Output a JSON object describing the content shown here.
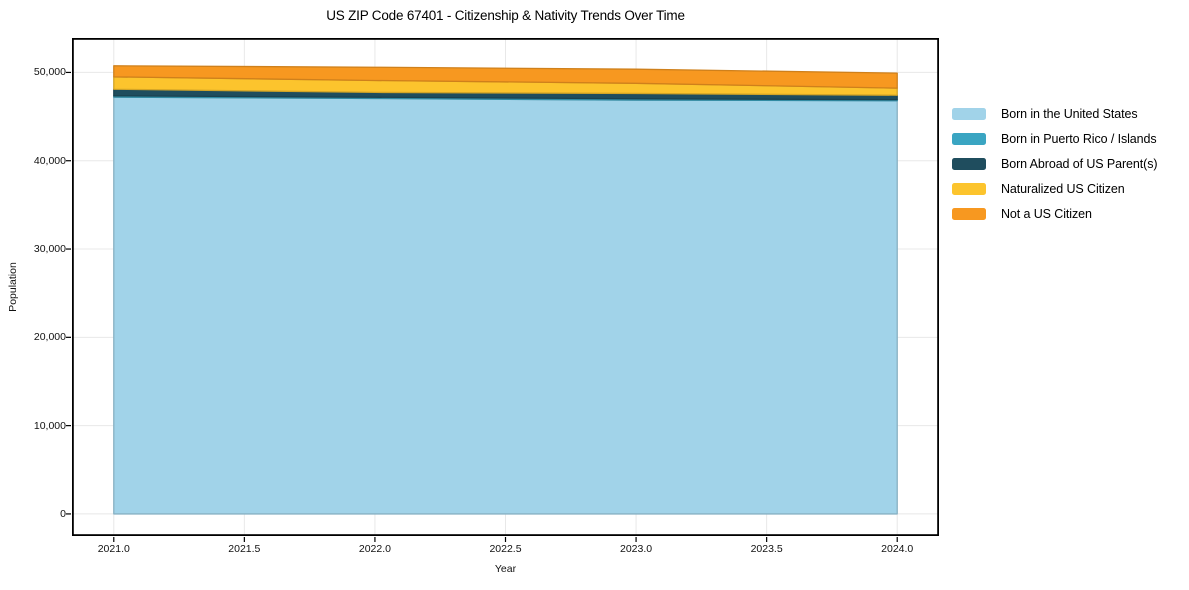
{
  "chart_data": {
    "type": "area",
    "stacked": true,
    "title": "US ZIP Code 67401 - Citizenship & Nativity Trends Over Time",
    "xlabel": "Year",
    "ylabel": "Population",
    "x": [
      2021,
      2022,
      2023,
      2024
    ],
    "series": [
      {
        "name": "Born in the United States",
        "color": "#a1d3e9",
        "values": [
          47200,
          47050,
          46870,
          46800
        ]
      },
      {
        "name": "Born in Puerto Rico / Islands",
        "color": "#3aa5c2",
        "values": [
          150,
          140,
          150,
          120
        ]
      },
      {
        "name": "Born Abroad of US Parent(s)",
        "color": "#1f4d5e",
        "values": [
          750,
          550,
          600,
          500
        ]
      },
      {
        "name": "Naturalized US Citizen",
        "color": "#fcc42d",
        "values": [
          1400,
          1350,
          1150,
          800
        ]
      },
      {
        "name": "Not a US Citizen",
        "color": "#f79820",
        "values": [
          1250,
          1500,
          1600,
          1700
        ]
      }
    ],
    "x_ticks": [
      {
        "value": 2021.0,
        "label": "2021.0"
      },
      {
        "value": 2021.5,
        "label": "2021.5"
      },
      {
        "value": 2022.0,
        "label": "2022.0"
      },
      {
        "value": 2022.5,
        "label": "2022.5"
      },
      {
        "value": 2023.0,
        "label": "2023.0"
      },
      {
        "value": 2023.5,
        "label": "2023.5"
      },
      {
        "value": 2024.0,
        "label": "2024.0"
      }
    ],
    "y_ticks": [
      {
        "value": 0,
        "label": "0"
      },
      {
        "value": 10000,
        "label": "10,000"
      },
      {
        "value": 20000,
        "label": "20,000"
      },
      {
        "value": 30000,
        "label": "30,000"
      },
      {
        "value": 40000,
        "label": "40,000"
      },
      {
        "value": 50000,
        "label": "50,000"
      }
    ],
    "xlim": [
      2020.84,
      2024.16
    ],
    "ylim": [
      -2500,
      53900
    ],
    "grid": true,
    "grid_color": "#e8e8e8",
    "axis_color": "#000000",
    "legend_position": "right outside"
  }
}
